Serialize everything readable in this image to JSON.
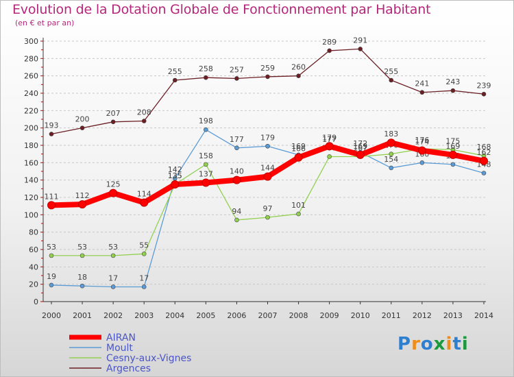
{
  "header": {
    "title": "Evolution de la Dotation Globale de Fonctionnement par Habitant",
    "subtitle": "(en € et par an)"
  },
  "chart_data": {
    "type": "line",
    "title": "Evolution de la Dotation Globale de Fonctionnement par Habitant",
    "subtitle": "(en € et par an)",
    "xlabel": "",
    "ylabel": "",
    "ylim": [
      0,
      300
    ],
    "yticks": [
      0,
      20,
      40,
      60,
      80,
      100,
      120,
      140,
      160,
      180,
      200,
      220,
      240,
      260,
      280,
      300
    ],
    "grid": "horizontal dashed",
    "legend_position": "bottom-left",
    "categories": [
      "2000",
      "2001",
      "2002",
      "2003",
      "2004",
      "2005",
      "2006",
      "2007",
      "2008",
      "2009",
      "2010",
      "2011",
      "2012",
      "2013",
      "2014"
    ],
    "series": [
      {
        "name": "Argences",
        "color": "#6b1e24",
        "values": [
          193,
          200,
          207,
          208,
          255,
          258,
          257,
          259,
          260,
          289,
          291,
          255,
          241,
          243,
          239
        ],
        "labels": [
          "193",
          "200",
          "207",
          "208",
          "255",
          "258",
          "257",
          "259",
          "260",
          "289",
          "291",
          "255",
          "241",
          "243",
          "239"
        ]
      },
      {
        "name": "Moult",
        "color": "#5b9bd5",
        "values": [
          19,
          18,
          17,
          17,
          142,
          198,
          177,
          179,
          169,
          177,
          172,
          154,
          160,
          158,
          148
        ],
        "labels": [
          "19",
          "18",
          "17",
          "17",
          "142",
          "198",
          "177",
          "179",
          "169",
          "177",
          "172",
          "154",
          "160",
          "158",
          "148"
        ]
      },
      {
        "name": "Cesny-aux-Vignes",
        "color": "#92d050",
        "values": [
          53,
          53,
          53,
          55,
          135,
          158,
          94,
          97,
          101,
          167,
          167,
          170,
          176,
          175,
          168
        ],
        "labels": [
          "53",
          "53",
          "53",
          "55",
          "135",
          "158",
          "94",
          "97",
          "101",
          "167",
          "167",
          "170",
          "176",
          "175",
          "168"
        ]
      },
      {
        "name": "AIRAN",
        "color": "#ff0000",
        "values": [
          111,
          112,
          125,
          114,
          135,
          137,
          140,
          144,
          166,
          179,
          169,
          183,
          174,
          169,
          162
        ],
        "labels": [
          "111",
          "112",
          "125",
          "114",
          "135",
          "137",
          "140",
          "144",
          "166",
          "179",
          "169",
          "183",
          "174",
          "169",
          "162"
        ]
      }
    ],
    "legend": [
      "AIRAN",
      "Moult",
      "Cesny-aux-Vignes",
      "Argences"
    ]
  },
  "logo": {
    "text": "Proxiti"
  }
}
